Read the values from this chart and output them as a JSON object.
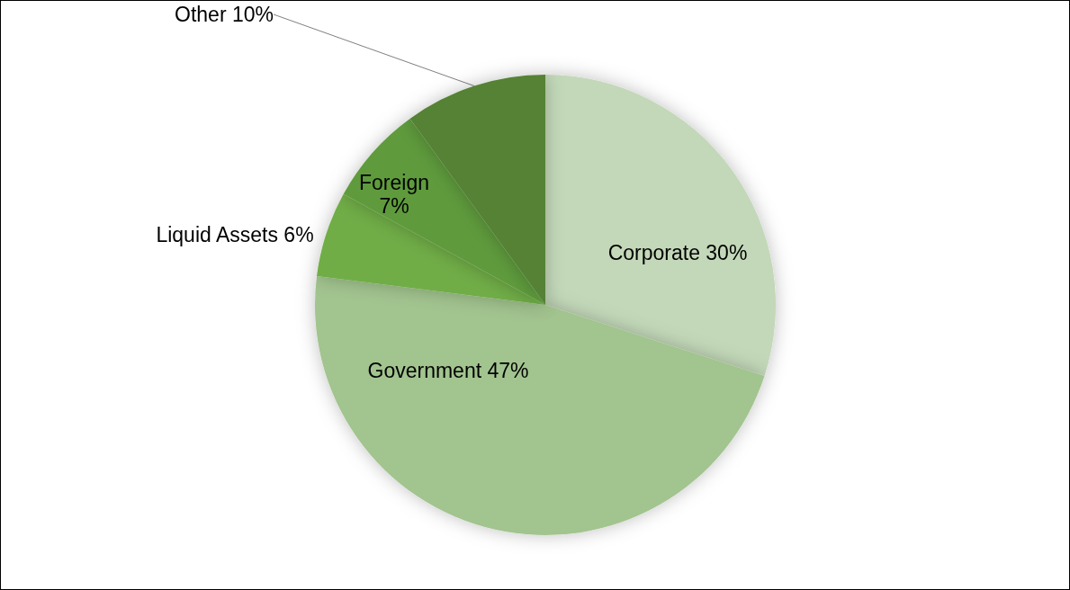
{
  "chart_data": {
    "type": "pie",
    "categories": [
      "Corporate",
      "Government",
      "Liquid Assets",
      "Foreign",
      "Other"
    ],
    "values": [
      30,
      47,
      6,
      7,
      10
    ],
    "colors": [
      "#c3d8b9",
      "#a2c48f",
      "#70ad47",
      "#5f9b3e",
      "#548235"
    ],
    "value_labels": [
      "30%",
      "47%",
      "6%",
      "7%",
      "10%"
    ],
    "legend": false
  }
}
